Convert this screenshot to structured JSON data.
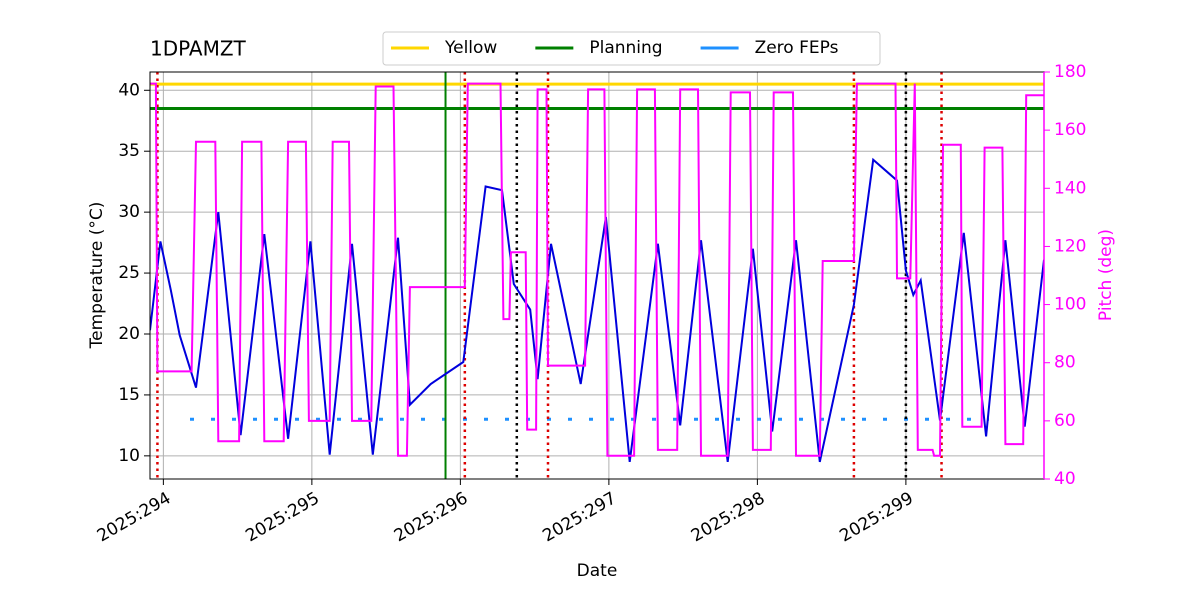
{
  "chart_data": {
    "type": "line",
    "title": "1DPAMZT",
    "xlabel": "Date",
    "ylabel": "Temperature (°C)",
    "y2label": "Pitch (deg)",
    "xlim": [
      293.91,
      299.93
    ],
    "ylim": [
      8.1,
      41.5
    ],
    "y2lim": [
      40,
      180
    ],
    "xticks": [
      {
        "value": 294,
        "label": "2025:294"
      },
      {
        "value": 295,
        "label": "2025:295"
      },
      {
        "value": 296,
        "label": "2025:296"
      },
      {
        "value": 297,
        "label": "2025:297"
      },
      {
        "value": 298,
        "label": "2025:298"
      },
      {
        "value": 299,
        "label": "2025:299"
      }
    ],
    "yticks": [
      10,
      15,
      20,
      25,
      30,
      35,
      40
    ],
    "y2ticks": [
      40,
      60,
      80,
      100,
      120,
      140,
      160,
      180
    ],
    "grid": true,
    "y2color": "#ff00ff",
    "series": [
      {
        "color": "#0000dd",
        "x": [
          293.91,
          293.98,
          294.05,
          294.11,
          294.22,
          294.37,
          294.52,
          294.68,
          294.84,
          294.99,
          295.12,
          295.27,
          295.41,
          295.58,
          295.66,
          295.8,
          296.02,
          296.17,
          296.28,
          296.36,
          296.47,
          296.52,
          296.61,
          296.81,
          296.98,
          297.14,
          297.33,
          297.48,
          297.62,
          297.8,
          297.97,
          298.1,
          298.26,
          298.42,
          298.65,
          298.78,
          298.94,
          299.0,
          299.05,
          299.1,
          299.23,
          299.39,
          299.54,
          299.67,
          299.8,
          299.93
        ],
        "values": [
          20.3,
          27.6,
          23.6,
          19.9,
          15.6,
          30.0,
          11.7,
          28.2,
          11.4,
          27.6,
          10.1,
          27.4,
          10.1,
          27.9,
          14.2,
          15.9,
          17.7,
          32.1,
          31.8,
          24.1,
          22.0,
          16.3,
          27.4,
          15.9,
          29.6,
          9.5,
          27.4,
          12.5,
          27.7,
          9.5,
          27.0,
          12.0,
          27.7,
          9.5,
          22.4,
          34.3,
          32.6,
          25.2,
          23.2,
          24.4,
          12.9,
          28.3,
          11.6,
          27.7,
          12.4,
          26.1
        ]
      },
      {
        "color": "#ff00ff",
        "axis": "y2",
        "x": [
          293.91,
          293.95,
          293.96,
          294.19,
          294.22,
          294.35,
          294.37,
          294.51,
          294.53,
          294.66,
          294.68,
          294.81,
          294.84,
          294.96,
          294.98,
          295.12,
          295.14,
          295.25,
          295.27,
          295.4,
          295.43,
          295.55,
          295.58,
          295.64,
          295.66,
          296.03,
          296.05,
          296.27,
          296.29,
          296.33,
          296.34,
          296.44,
          296.45,
          296.51,
          296.52,
          296.58,
          296.59,
          296.84,
          296.86,
          296.97,
          296.99,
          297.17,
          297.19,
          297.31,
          297.33,
          297.46,
          297.48,
          297.6,
          297.62,
          297.8,
          297.82,
          297.95,
          297.97,
          298.09,
          298.11,
          298.24,
          298.26,
          298.42,
          298.44,
          298.65,
          298.67,
          298.93,
          298.94,
          299.03,
          299.06,
          299.08,
          299.18,
          299.19,
          299.23,
          299.25,
          299.37,
          299.38,
          299.51,
          299.53,
          299.65,
          299.67,
          299.79,
          299.81,
          299.93
        ],
        "values": [
          176,
          176,
          77,
          77,
          156,
          156,
          53,
          53,
          156,
          156,
          53,
          53,
          156,
          156,
          60,
          60,
          156,
          156,
          60,
          60,
          175,
          175,
          48,
          48,
          106,
          106,
          176,
          176,
          95,
          95,
          118,
          118,
          57,
          57,
          174,
          174,
          79,
          79,
          174,
          174,
          48,
          48,
          174,
          174,
          50,
          50,
          174,
          174,
          48,
          48,
          173,
          173,
          50,
          50,
          173,
          173,
          48,
          48,
          115,
          115,
          176,
          176,
          109,
          109,
          176,
          50,
          50,
          48,
          48,
          155,
          155,
          58,
          58,
          154,
          154,
          52,
          52,
          172,
          172
        ]
      }
    ],
    "hlines": [
      {
        "name": "Yellow",
        "color": "#ffd700",
        "value": 40.5
      },
      {
        "name": "Planning",
        "color": "#008000",
        "value": 38.5
      },
      {
        "name": "Zero FEPs",
        "color": "#1e90ff",
        "value": 13,
        "dashed": true
      }
    ],
    "vlines": [
      {
        "x": 295.9,
        "color": "#008000"
      },
      {
        "x": 293.96,
        "color": "#dd0000",
        "dashed": true
      },
      {
        "x": 296.03,
        "color": "#dd0000",
        "dashed": true
      },
      {
        "x": 296.59,
        "color": "#dd0000",
        "dashed": true
      },
      {
        "x": 298.65,
        "color": "#dd0000",
        "dashed": true
      },
      {
        "x": 299.24,
        "color": "#dd0000",
        "dashed": true
      },
      {
        "x": 296.38,
        "color": "#000000",
        "dashed": true
      },
      {
        "x": 299.0,
        "color": "#000000",
        "dashed": true
      }
    ]
  }
}
